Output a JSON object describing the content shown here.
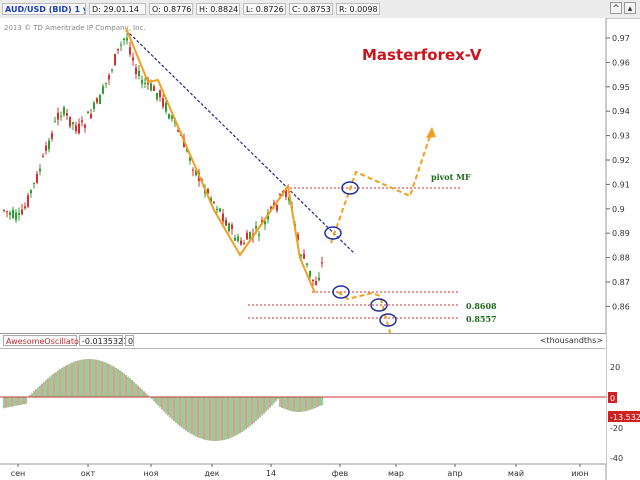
{
  "toolbar": {
    "symbol": "AUD/USD (BID) 1 у D",
    "date": "D: 29.01.14",
    "open": "O: 0.8776",
    "high": "H: 0.8824",
    "low": "L: 0.8726",
    "close": "C: 0.8753",
    "range": "R: 0.0098"
  },
  "chart": {
    "copyright": "2013 © TD Ameritrade IP Company, Inc.",
    "brand": "Masterforex-V",
    "pivot_label": "pivot MF",
    "level_1": "0.8608",
    "level_2": "0.8557",
    "price_ticks": [
      "0.97",
      "0.96",
      "0.95",
      "0.94",
      "0.93",
      "0.92",
      "0.91",
      "0.9",
      "0.89",
      "0.88",
      "0.87",
      "0.86"
    ]
  },
  "oscillator": {
    "name": "AwesomeOscillator",
    "value": "-0.0135321",
    "param": "0",
    "units": "<thousandths>",
    "ticks": [
      "20",
      "-20",
      "-40"
    ],
    "zero_label": "0",
    "current_label": "-13.532"
  },
  "time_axis": [
    "сен",
    "окт",
    "ноя",
    "дек",
    "14",
    "фев",
    "мар",
    "апр",
    "май",
    "июн"
  ],
  "colors": {
    "up": "#2e9e2e",
    "down": "#d03030",
    "zigzag": "#f0a020",
    "trend": "#1a2a90",
    "pivot": "#d03030",
    "ellipse": "#2030a0"
  }
}
